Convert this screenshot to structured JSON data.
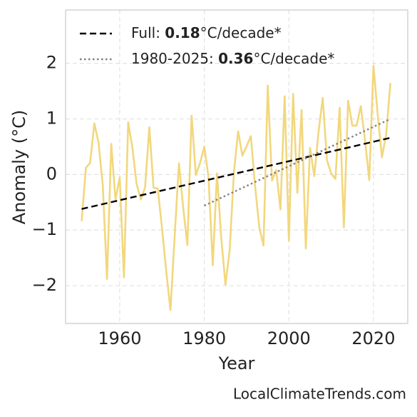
{
  "chart_data": {
    "type": "line",
    "xlabel": "Year",
    "ylabel": "Anomaly (°C)",
    "watermark": "LocalClimateTrends.com",
    "x": [
      1951,
      1952,
      1953,
      1954,
      1955,
      1956,
      1957,
      1958,
      1959,
      1960,
      1961,
      1962,
      1963,
      1964,
      1965,
      1966,
      1967,
      1968,
      1969,
      1970,
      1971,
      1972,
      1973,
      1974,
      1975,
      1976,
      1977,
      1978,
      1979,
      1980,
      1981,
      1982,
      1983,
      1984,
      1985,
      1986,
      1987,
      1988,
      1989,
      1990,
      1991,
      1992,
      1993,
      1994,
      1995,
      1996,
      1997,
      1998,
      1999,
      2000,
      2001,
      2002,
      2003,
      2004,
      2005,
      2006,
      2007,
      2008,
      2009,
      2010,
      2011,
      2012,
      2013,
      2014,
      2015,
      2016,
      2017,
      2018,
      2019,
      2020,
      2021,
      2022,
      2023,
      2024
    ],
    "series": [
      {
        "color": "#f2d77c",
        "values": [
          -0.84,
          0.12,
          0.21,
          0.92,
          0.57,
          -0.2,
          -1.88,
          0.55,
          -0.45,
          -0.05,
          -1.85,
          0.94,
          0.48,
          -0.17,
          -0.45,
          -0.23,
          0.85,
          -0.24,
          -0.25,
          -0.97,
          -1.74,
          -2.44,
          -1.1,
          0.2,
          -0.59,
          -1.27,
          1.06,
          -0.01,
          0.21,
          0.5,
          -0.05,
          -1.63,
          0.02,
          -1.13,
          -1.98,
          -1.36,
          0.04,
          0.78,
          0.34,
          0.51,
          0.69,
          -0.2,
          -0.95,
          -1.28,
          1.6,
          -0.11,
          0.08,
          -0.63,
          1.41,
          -1.19,
          1.45,
          -0.33,
          1.16,
          -1.33,
          0.48,
          -0.03,
          0.76,
          1.38,
          0.26,
          0.02,
          -0.08,
          1.2,
          -0.95,
          1.33,
          0.88,
          0.88,
          1.23,
          0.62,
          -0.1,
          1.96,
          1.08,
          0.31,
          0.72,
          1.65
        ]
      },
      {
        "name": "Full: 0.18°C/decade*",
        "color": "#000000",
        "dash": "dashed",
        "x": [
          1951,
          2024
        ],
        "values": [
          -0.62,
          0.66
        ]
      },
      {
        "name": "1980-2025: 0.36°C/decade*",
        "color": "#808080",
        "dash": "dotted",
        "x": [
          1980,
          2024
        ],
        "values": [
          -0.56,
          1.0
        ]
      }
    ],
    "xlim": [
      1947.2,
      2028.1
    ],
    "xticks": [
      1960,
      1980,
      2000,
      2020
    ],
    "ylim": [
      -2.68,
      2.96
    ],
    "yticks": [
      {
        "value": -2,
        "label": "−2"
      },
      {
        "value": -1,
        "label": "−1"
      },
      0,
      1,
      2
    ],
    "grid": true,
    "legend": "upper left"
  }
}
